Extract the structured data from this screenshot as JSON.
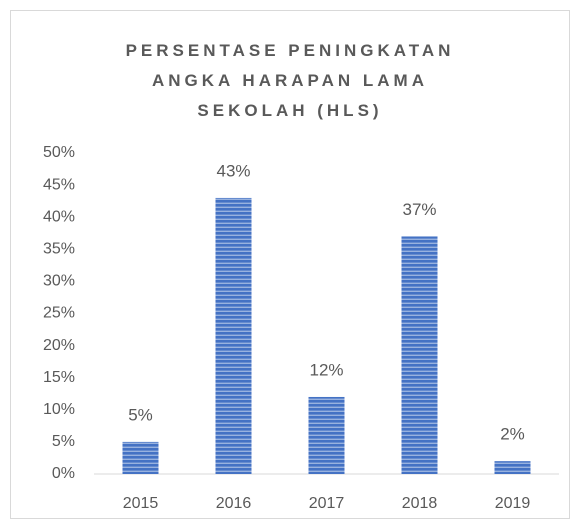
{
  "chart_data": {
    "type": "bar",
    "title": "PERSENTASE PENINGKATAN ANGKA HARAPAN LAMA SEKOLAH (HLS)",
    "categories": [
      "2015",
      "2016",
      "2017",
      "2018",
      "2019"
    ],
    "values": [
      5,
      43,
      12,
      37,
      2
    ],
    "value_labels": [
      "5%",
      "43%",
      "12%",
      "37%",
      "2%"
    ],
    "color": "#4472c4",
    "ylim": [
      0,
      50
    ],
    "yticks": [
      {
        "value": 0,
        "label": "0%"
      },
      {
        "value": 5,
        "label": "5%"
      },
      {
        "value": 10,
        "label": "10%"
      },
      {
        "value": 15,
        "label": "15%"
      },
      {
        "value": 20,
        "label": "20%"
      },
      {
        "value": 25,
        "label": "25%"
      },
      {
        "value": 30,
        "label": "30%"
      },
      {
        "value": 35,
        "label": "35%"
      },
      {
        "value": 40,
        "label": "40%"
      },
      {
        "value": 45,
        "label": "45%"
      },
      {
        "value": 50,
        "label": "50%"
      }
    ],
    "grid": false
  }
}
